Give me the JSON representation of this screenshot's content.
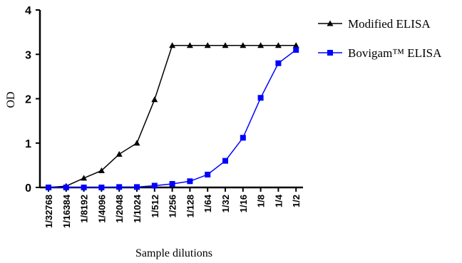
{
  "chart_data": {
    "type": "line",
    "title": "",
    "xlabel": "Sample dilutions",
    "ylabel": "OD",
    "categories": [
      "1/32768",
      "1/16384",
      "1/8192",
      "1/4096",
      "1/2048",
      "1/1024",
      "1/512",
      "1/256",
      "1/128",
      "1/64",
      "1/32",
      "1/16",
      "1/8",
      "1/4",
      "1/2"
    ],
    "ylim": [
      0,
      4
    ],
    "yticks": [
      "0",
      "1",
      "2",
      "3",
      "4"
    ],
    "grid": false,
    "legend_position": "top-right",
    "series": [
      {
        "name": "Modified ELISA",
        "marker": "triangle",
        "color": "#000000",
        "values": [
          0.0,
          0.03,
          0.21,
          0.38,
          0.75,
          1.0,
          1.98,
          3.2,
          3.2,
          3.2,
          3.2,
          3.2,
          3.2,
          3.2,
          3.2
        ]
      },
      {
        "name": "Bovigam™ ELISA",
        "marker": "square",
        "color": "#0000ff",
        "values": [
          0.0,
          0.0,
          0.0,
          0.0,
          0.01,
          0.01,
          0.04,
          0.08,
          0.14,
          0.29,
          0.6,
          1.12,
          2.02,
          2.8,
          3.1
        ]
      }
    ]
  }
}
